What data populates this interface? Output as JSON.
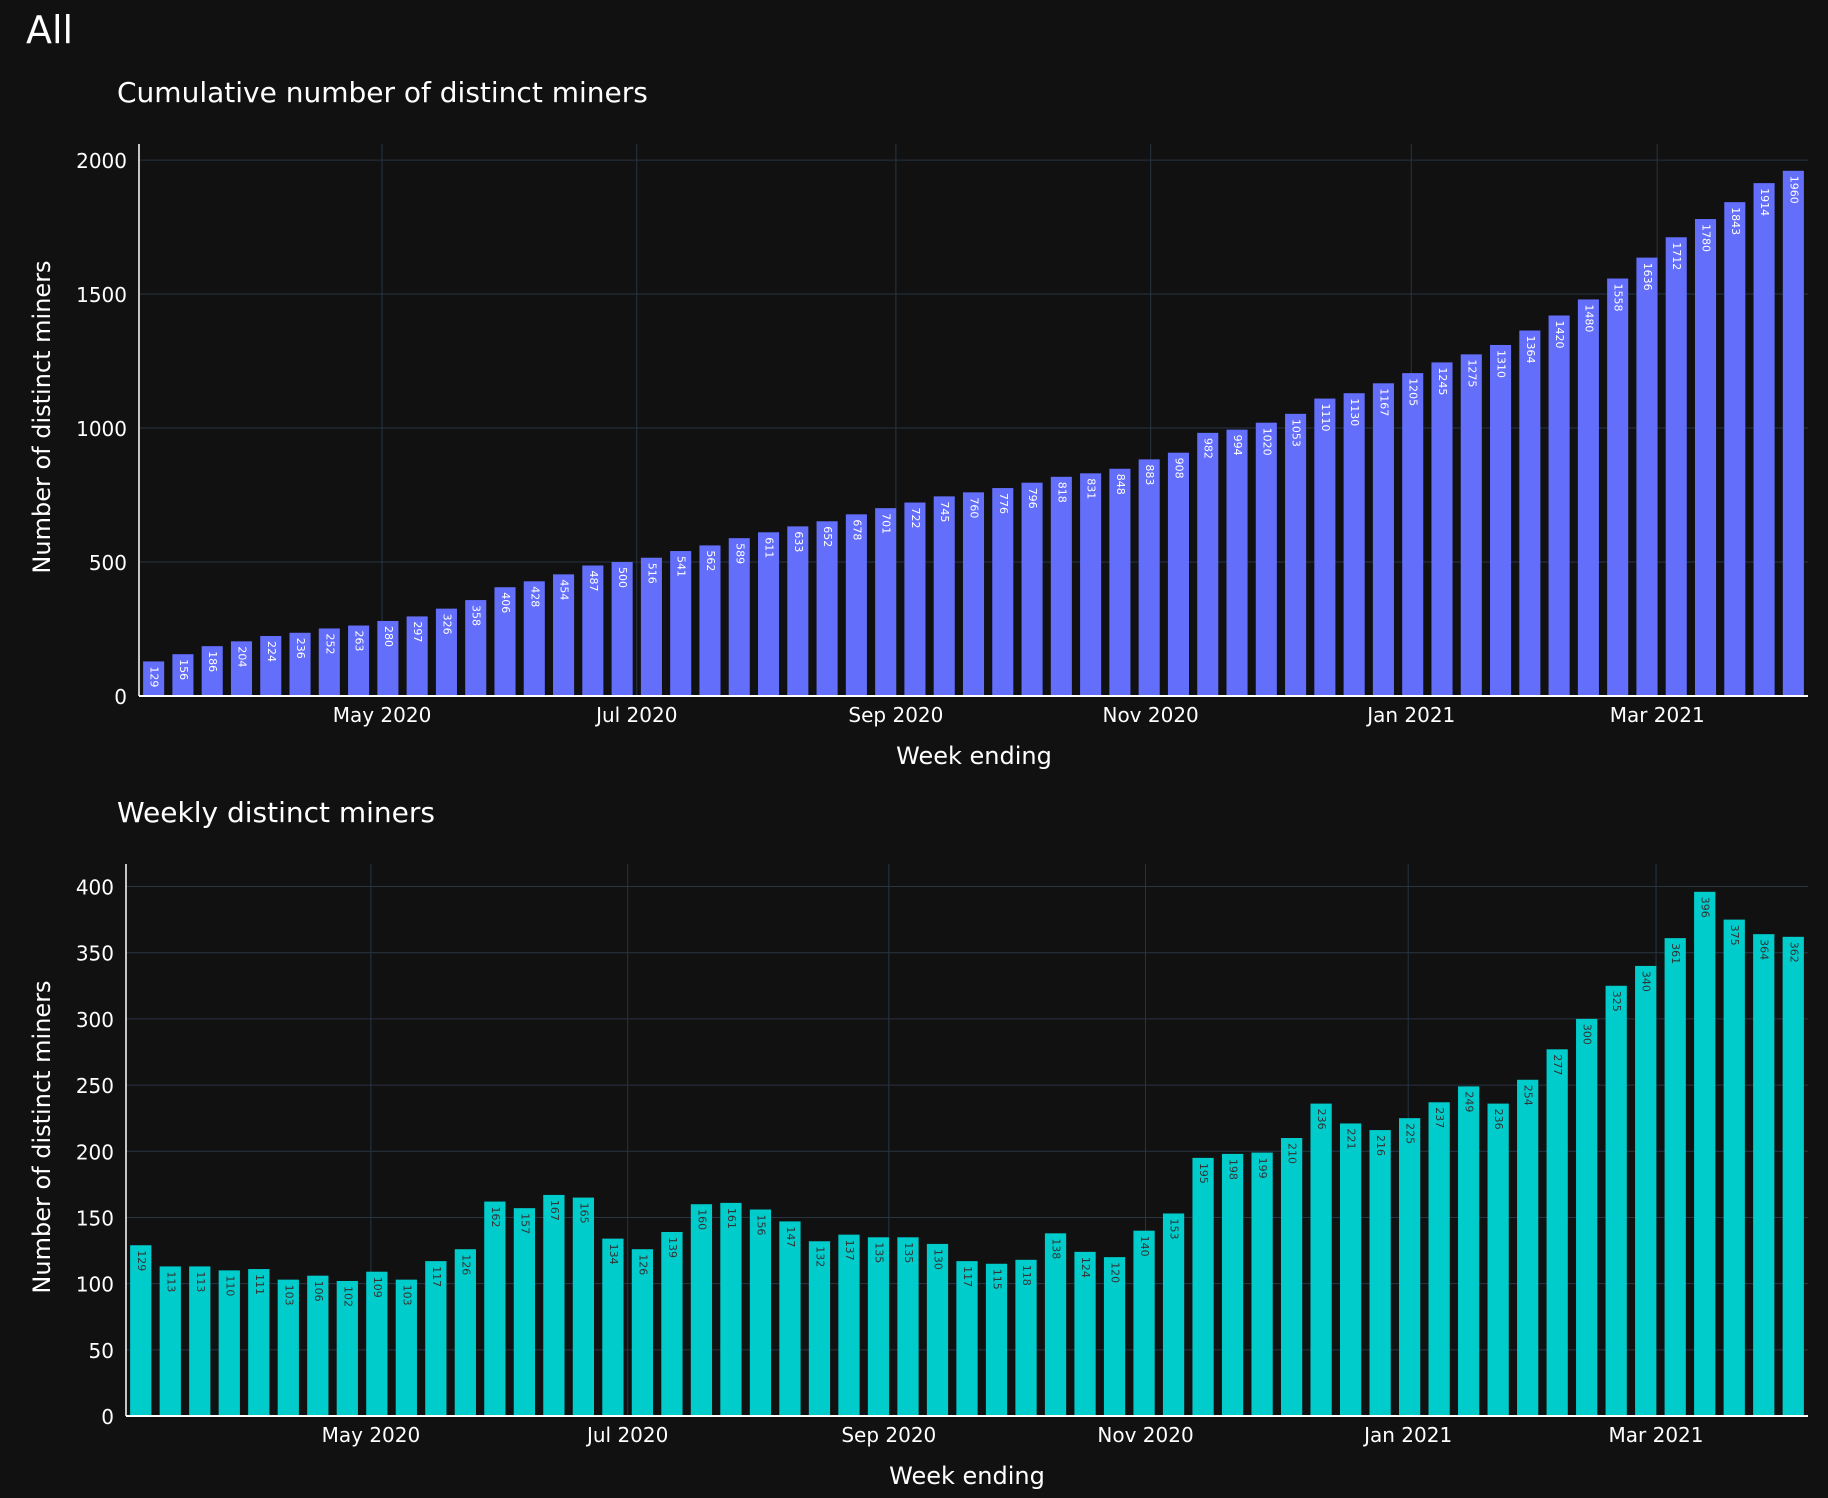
{
  "page": {
    "title": "All"
  },
  "chart_data": [
    {
      "type": "bar",
      "title": "Cumulative number of distinct miners",
      "xlabel": "Week ending",
      "ylabel": "Number of distinct miners",
      "ylim": [
        0,
        2060
      ],
      "yticks": [
        0,
        500,
        1000,
        1500,
        2000
      ],
      "xticks": [
        {
          "label": "May 2020",
          "index": 7.8
        },
        {
          "label": "Jul 2020",
          "index": 16.5
        },
        {
          "label": "Sep 2020",
          "index": 25.35
        },
        {
          "label": "Nov 2020",
          "index": 34.05
        },
        {
          "label": "Jan 2021",
          "index": 42.95
        },
        {
          "label": "Mar 2021",
          "index": 51.35
        }
      ],
      "grid": true,
      "color": "#636efa",
      "label_color": "#ffffff",
      "values": [
        129,
        156,
        186,
        204,
        224,
        236,
        252,
        263,
        280,
        297,
        326,
        358,
        406,
        428,
        454,
        487,
        500,
        516,
        541,
        562,
        589,
        611,
        633,
        652,
        678,
        701,
        722,
        745,
        760,
        776,
        796,
        818,
        831,
        848,
        883,
        908,
        982,
        994,
        1020,
        1053,
        1110,
        1130,
        1167,
        1205,
        1245,
        1275,
        1310,
        1364,
        1420,
        1480,
        1558,
        1636,
        1712,
        1780,
        1843,
        1914,
        1960
      ]
    },
    {
      "type": "bar",
      "title": "Weekly distinct miners",
      "xlabel": "Week ending",
      "ylabel": "Number of distinct miners",
      "ylim": [
        0,
        417
      ],
      "yticks": [
        0,
        50,
        100,
        150,
        200,
        250,
        300,
        350,
        400
      ],
      "xticks": [
        {
          "label": "May 2020",
          "index": 7.8
        },
        {
          "label": "Jul 2020",
          "index": 16.5
        },
        {
          "label": "Sep 2020",
          "index": 25.35
        },
        {
          "label": "Nov 2020",
          "index": 34.05
        },
        {
          "label": "Jan 2021",
          "index": 42.95
        },
        {
          "label": "Mar 2021",
          "index": 51.35
        }
      ],
      "grid": true,
      "color": "#00cccc",
      "label_color": "#333333",
      "values": [
        129,
        113,
        113,
        110,
        111,
        103,
        106,
        102,
        109,
        103,
        117,
        126,
        162,
        157,
        167,
        165,
        134,
        126,
        139,
        160,
        161,
        156,
        147,
        132,
        137,
        135,
        135,
        130,
        117,
        115,
        118,
        138,
        124,
        120,
        140,
        153,
        195,
        198,
        199,
        210,
        236,
        221,
        216,
        225,
        237,
        249,
        236,
        254,
        277,
        300,
        325,
        340,
        361,
        396,
        375,
        364,
        362
      ]
    }
  ]
}
